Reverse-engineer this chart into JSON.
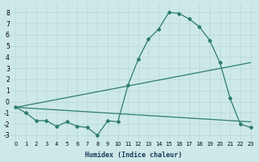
{
  "xlabel": "Humidex (Indice chaleur)",
  "line_color": "#2e7d6e",
  "background_color": "#cde8e8",
  "grid_color": "#b8d8d8",
  "ylim": [
    -3.5,
    8.8
  ],
  "xlim": [
    -0.5,
    23.5
  ],
  "yticks": [
    -3,
    -2,
    -1,
    0,
    1,
    2,
    3,
    4,
    5,
    6,
    7,
    8
  ],
  "xticks": [
    0,
    1,
    2,
    3,
    4,
    5,
    6,
    7,
    8,
    9,
    10,
    11,
    12,
    13,
    14,
    15,
    16,
    17,
    18,
    19,
    20,
    21,
    22,
    23
  ],
  "wavy_x": [
    0,
    1,
    2,
    3,
    4,
    5,
    6,
    7,
    8,
    9,
    10,
    11,
    12,
    13,
    14,
    15,
    16,
    17,
    18,
    19,
    20,
    21,
    22,
    23
  ],
  "wavy_y": [
    -0.5,
    -1.0,
    -1.7,
    -1.7,
    -2.2,
    -1.8,
    -2.2,
    -2.3,
    -3.0,
    -1.7,
    -1.8,
    1.5,
    3.8,
    5.6,
    6.5,
    8.0,
    7.9,
    7.4,
    6.7,
    5.5,
    3.5,
    0.3,
    -2.0,
    -2.3
  ],
  "trend1_x": [
    0,
    23
  ],
  "trend1_y": [
    -0.5,
    3.5
  ],
  "trend2_x": [
    0,
    23
  ],
  "trend2_y": [
    -0.5,
    -1.8
  ]
}
